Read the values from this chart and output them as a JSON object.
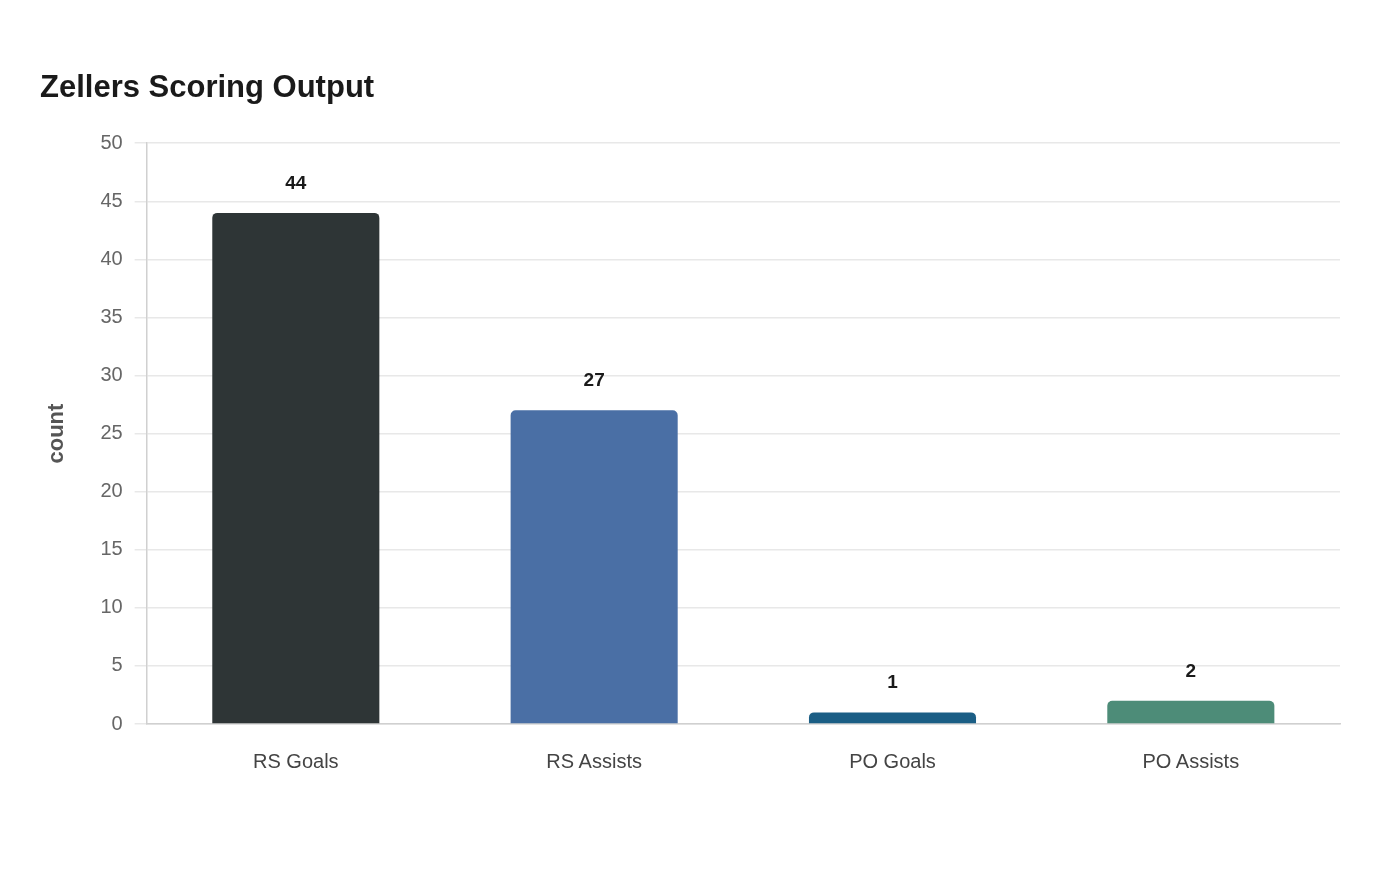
{
  "chart_data": {
    "type": "bar",
    "title": "Zellers Scoring Output",
    "ylabel": "count",
    "categories": [
      "RS Goals",
      "RS Assists",
      "PO Goals",
      "PO Assists"
    ],
    "values": [
      44,
      27,
      1,
      2
    ],
    "colors": [
      "#2e3536",
      "#4a6fa5",
      "#1b5e85",
      "#4d8c78"
    ],
    "ylim": [
      0,
      50
    ],
    "yticks": [
      0,
      5,
      10,
      15,
      20,
      25,
      30,
      35,
      40,
      45,
      50
    ],
    "grid": "y",
    "data_labels": true
  }
}
